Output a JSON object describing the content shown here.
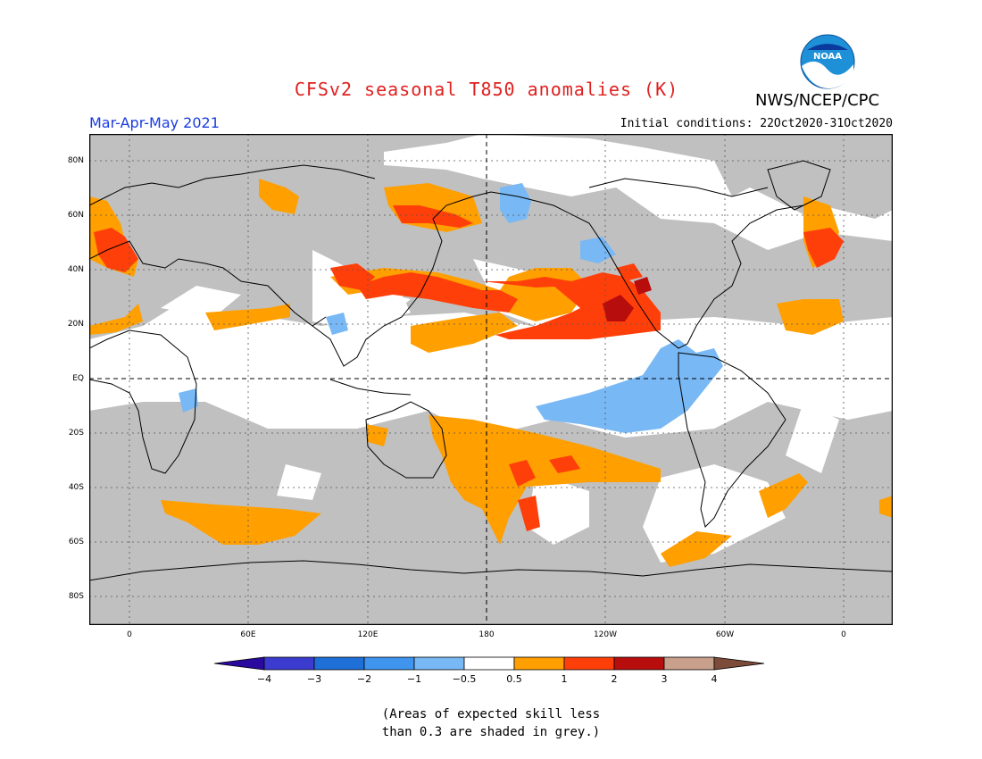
{
  "header": {
    "title": "CFSv2 seasonal T850 anomalies (K)",
    "agency": "NWS/NCEP/CPC",
    "season": "Mar-Apr-May 2021",
    "initial_conditions": "Initial conditions: 22Oct2020-31Oct2020",
    "logo_text": "NOAA"
  },
  "axes": {
    "lat_labels": [
      "80N",
      "60N",
      "40N",
      "20N",
      "EQ",
      "20S",
      "40S",
      "60S",
      "80S"
    ],
    "lon_labels": [
      "0",
      "60E",
      "120E",
      "180",
      "120W",
      "60W",
      "0"
    ]
  },
  "colorbar": {
    "labels": [
      "−4",
      "−3",
      "−2",
      "−1",
      "−0.5",
      "0.5",
      "1",
      "2",
      "3",
      "4"
    ],
    "colors": [
      "#2a0a9e",
      "#3b3bd0",
      "#1f6fd8",
      "#3f94ee",
      "#78b8f5",
      "#ffffff",
      "#ff9f00",
      "#ff3f0a",
      "#b80d0d",
      "#c8a08c",
      "#7d4b3a"
    ]
  },
  "map_colors": {
    "grey": "#c0c0c0",
    "white": "#ffffff",
    "orange": "#ff9f00",
    "red": "#ff3f0a",
    "darkred": "#b80d0d",
    "lightblue": "#78b8f5"
  },
  "note": {
    "line1": "(Areas of expected skill less",
    "line2": "than 0.3 are shaded in grey.)"
  }
}
